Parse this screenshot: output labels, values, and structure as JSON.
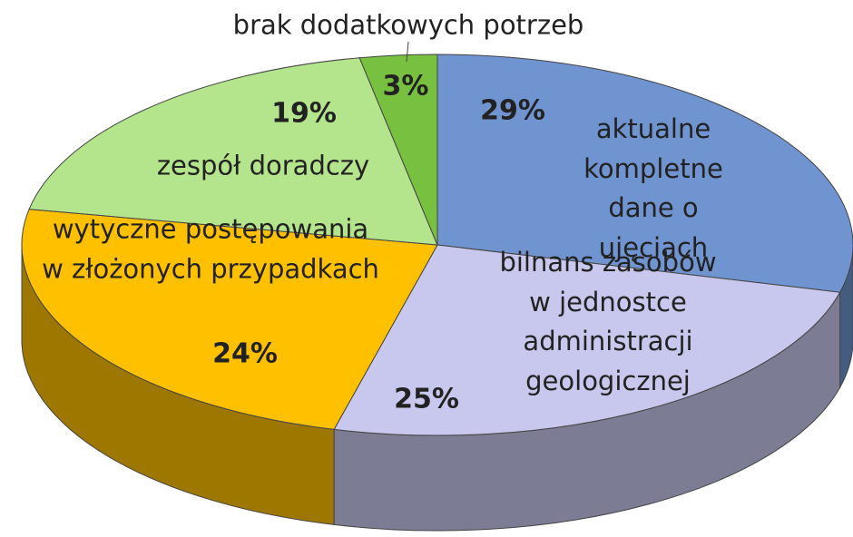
{
  "chart_data": {
    "type": "pie3d",
    "categories": [
      "aktualne kompletne\ndane o ujęciach",
      "bilnans zasobów\nw jednostce administracji\ngeologicznej",
      "wytyczne postępowania\nw złożonych przypadkach",
      "zespół doradczy",
      "brak dodatkowych potrzeb"
    ],
    "values": [
      29,
      25,
      24,
      19,
      3
    ],
    "value_labels": [
      "29%",
      "25%",
      "24%",
      "19%",
      "3%"
    ],
    "colors": [
      "#7094d0",
      "#c8c8ee",
      "#ffc000",
      "#b4e48c",
      "#78c040"
    ]
  }
}
